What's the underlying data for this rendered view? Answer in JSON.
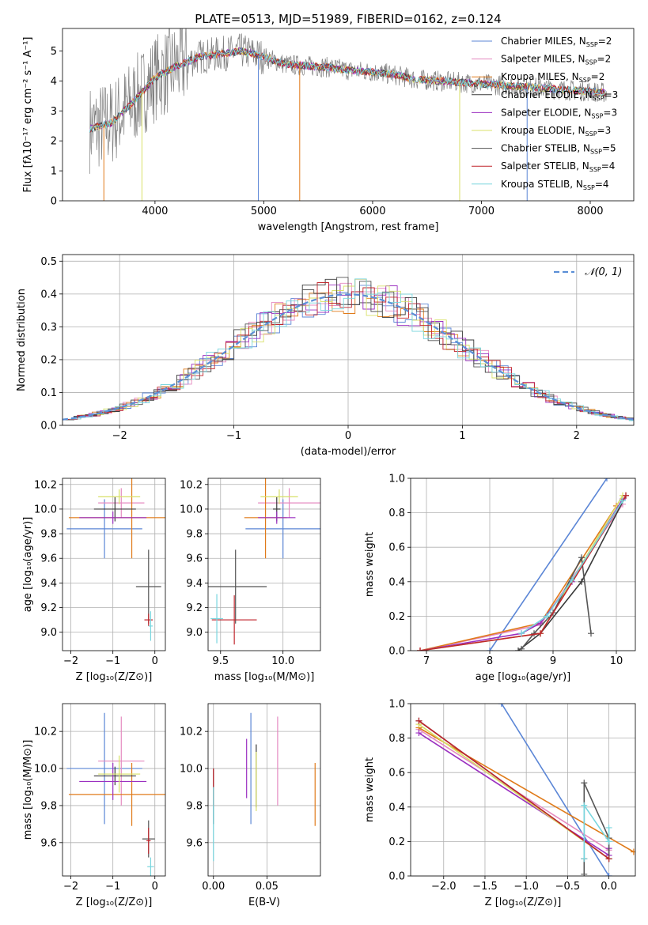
{
  "title": "PLATE=0513, MJD=51989, FIBERID=0162, z=0.124",
  "legend_models": [
    {
      "name": "Chabrier MILES, N",
      "sub": "SSP",
      "suffix": "=2",
      "color": "#5b86d6"
    },
    {
      "name": "Salpeter MILES, N",
      "sub": "SSP",
      "suffix": "=2",
      "color": "#e58ac0"
    },
    {
      "name": "Kroupa MILES, N",
      "sub": "SSP",
      "suffix": "=2",
      "color": "#e07b1a"
    },
    {
      "name": "Chabrier ELODIE, N",
      "sub": "SSP",
      "suffix": "=3",
      "color": "#3a3a3a"
    },
    {
      "name": "Salpeter ELODIE, N",
      "sub": "SSP",
      "suffix": "=3",
      "color": "#9b30c0"
    },
    {
      "name": "Kroupa ELODIE, N",
      "sub": "SSP",
      "suffix": "=3",
      "color": "#d8e068"
    },
    {
      "name": "Chabrier STELIB, N",
      "sub": "SSP",
      "suffix": "=5",
      "color": "#555555"
    },
    {
      "name": "Salpeter STELIB, N",
      "sub": "SSP",
      "suffix": "=4",
      "color": "#c0262d"
    },
    {
      "name": "Kroupa STELIB, N",
      "sub": "SSP",
      "suffix": "=4",
      "color": "#79d6de"
    }
  ],
  "chart_data": [
    {
      "id": "spectrum",
      "type": "line",
      "title": "PLATE=0513, MJD=51989, FIBERID=0162, z=0.124",
      "xlabel": "wavelength [Angstrom, rest frame]",
      "ylabel": "Flux [fλ10⁻¹⁷ erg cm⁻² s⁻¹ A⁻¹]",
      "xlim": [
        3150,
        8400
      ],
      "ylim": [
        0,
        5.75
      ],
      "xticks": [
        4000,
        5000,
        6000,
        7000,
        8000
      ],
      "yticks": [
        0,
        1,
        2,
        3,
        4,
        5
      ],
      "continuum": [
        [
          3400,
          2.4
        ],
        [
          3600,
          2.6
        ],
        [
          3800,
          3.3
        ],
        [
          4000,
          4.1
        ],
        [
          4200,
          4.5
        ],
        [
          4400,
          4.8
        ],
        [
          4600,
          4.9
        ],
        [
          4800,
          5.0
        ],
        [
          5000,
          4.8
        ],
        [
          5200,
          4.55
        ],
        [
          5400,
          4.5
        ],
        [
          5600,
          4.45
        ],
        [
          5800,
          4.35
        ],
        [
          6000,
          4.3
        ],
        [
          6200,
          4.2
        ],
        [
          6400,
          4.05
        ],
        [
          6600,
          4.0
        ],
        [
          6800,
          3.95
        ],
        [
          7000,
          3.9
        ],
        [
          7200,
          3.85
        ],
        [
          7400,
          3.8
        ],
        [
          7600,
          3.75
        ],
        [
          7800,
          3.7
        ],
        [
          8000,
          3.65
        ],
        [
          8150,
          3.6
        ]
      ],
      "dips": [
        [
          3530,
          0
        ],
        [
          3880,
          0
        ],
        [
          4950,
          0
        ],
        [
          5330,
          0
        ],
        [
          6800,
          0
        ],
        [
          7420,
          0
        ]
      ]
    },
    {
      "id": "residuals",
      "type": "bar",
      "xlabel": "(data-model)/error",
      "ylabel": "Normed distribution",
      "xlim": [
        -2.5,
        2.5
      ],
      "ylim": [
        0,
        0.52
      ],
      "xticks": [
        -2,
        -1,
        0,
        1,
        2
      ],
      "yticks": [
        0.0,
        0.1,
        0.2,
        0.3,
        0.4,
        0.5
      ],
      "legend": "𝒩(0, 1)",
      "bin_width": 0.1
    },
    {
      "id": "age-vs-Z",
      "type": "scatter",
      "xlabel": "Z [log₁₀(Z/Z⊙)]",
      "ylabel": "age  [log₁₀(age/yr)]",
      "xlim": [
        -2.2,
        0.25
      ],
      "ylim": [
        8.85,
        10.25
      ],
      "xticks": [
        -2,
        -1,
        0
      ],
      "yticks": [
        9.0,
        9.2,
        9.4,
        9.6,
        9.8,
        10.0,
        10.2
      ],
      "points": [
        {
          "model": 0,
          "x": -1.2,
          "xerr": 0.9,
          "y": 9.84,
          "yerr": 0.24
        },
        {
          "model": 1,
          "x": -0.8,
          "xerr": 0.55,
          "y": 10.05,
          "yerr": 0.12
        },
        {
          "model": 2,
          "x": -0.55,
          "xerr": 1.5,
          "y": 9.93,
          "yerr": 0.33
        },
        {
          "model": 3,
          "x": -0.95,
          "xerr": 0.5,
          "y": 10.0,
          "yerr": 0.1
        },
        {
          "model": 4,
          "x": -1.0,
          "xerr": 0.8,
          "y": 9.93,
          "yerr": 0.05
        },
        {
          "model": 5,
          "x": -0.85,
          "xerr": 0.5,
          "y": 10.1,
          "yerr": 0.06
        },
        {
          "model": 6,
          "x": -0.15,
          "xerr": 0.3,
          "y": 9.37,
          "yerr": 0.3
        },
        {
          "model": 7,
          "x": -0.15,
          "xerr": 0.1,
          "y": 9.1,
          "yerr": 0.05
        },
        {
          "model": 8,
          "x": -0.1,
          "xerr": 0.05,
          "y": 9.05,
          "yerr": 0.12
        }
      ]
    },
    {
      "id": "age-vs-mass",
      "type": "scatter",
      "xlabel": "mass [log₁₀(M/M⊙)]",
      "xlim": [
        9.4,
        10.3
      ],
      "ylim": [
        8.85,
        10.25
      ],
      "xticks": [
        9.5,
        10.0
      ],
      "yticks": [
        9.0,
        9.2,
        9.4,
        9.6,
        9.8,
        10.0,
        10.2
      ],
      "points": [
        {
          "model": 0,
          "x": 10.0,
          "xerr": 0.3,
          "y": 9.84,
          "yerr": 0.24
        },
        {
          "model": 1,
          "x": 10.05,
          "xerr": 0.25,
          "y": 10.05,
          "yerr": 0.12
        },
        {
          "model": 2,
          "x": 9.86,
          "xerr": 0.17,
          "y": 9.93,
          "yerr": 0.33
        },
        {
          "model": 3,
          "x": 9.95,
          "xerr": 0.03,
          "y": 10.0,
          "yerr": 0.1
        },
        {
          "model": 4,
          "x": 9.95,
          "xerr": 0.15,
          "y": 9.93,
          "yerr": 0.05
        },
        {
          "model": 5,
          "x": 9.97,
          "xerr": 0.15,
          "y": 10.1,
          "yerr": 0.06
        },
        {
          "model": 6,
          "x": 9.62,
          "xerr": 0.25,
          "y": 9.37,
          "yerr": 0.3
        },
        {
          "model": 7,
          "x": 9.61,
          "xerr": 0.18,
          "y": 9.1,
          "yerr": 0.2
        },
        {
          "model": 8,
          "x": 9.47,
          "xerr": 0.05,
          "y": 9.11,
          "yerr": 0.2
        }
      ]
    },
    {
      "id": "massweight-vs-age",
      "type": "line",
      "xlabel": "age  [log₁₀(age/yr)]",
      "ylabel": "mass weight",
      "xlim": [
        6.75,
        10.3
      ],
      "ylim": [
        0,
        1.0
      ],
      "xticks": [
        7,
        8,
        9,
        10
      ],
      "yticks": [
        0.0,
        0.2,
        0.4,
        0.6,
        0.8,
        1.0
      ],
      "series": [
        {
          "model": 0,
          "x": [
            8.0,
            9.85
          ],
          "y": [
            0.0,
            1.0
          ]
        },
        {
          "model": 1,
          "x": [
            6.9,
            8.8,
            10.1
          ],
          "y": [
            0.0,
            0.15,
            0.85
          ]
        },
        {
          "model": 2,
          "x": [
            6.9,
            8.8,
            10.0
          ],
          "y": [
            0.0,
            0.16,
            0.84
          ]
        },
        {
          "model": 3,
          "x": [
            8.45,
            8.8,
            9.45,
            10.15
          ],
          "y": [
            0.0,
            0.1,
            0.4,
            0.9
          ]
        },
        {
          "model": 4,
          "x": [
            6.9,
            8.5,
            8.8,
            9.3,
            10.1
          ],
          "y": [
            0.0,
            0.1,
            0.16,
            0.4,
            0.88
          ]
        },
        {
          "model": 5,
          "x": [
            6.9,
            8.8,
            10.1
          ],
          "y": [
            0.0,
            0.1,
            0.9
          ]
        },
        {
          "model": 6,
          "x": [
            8.5,
            8.7,
            9.0,
            9.45,
            9.6
          ],
          "y": [
            0.01,
            0.1,
            0.22,
            0.54,
            0.1
          ]
        },
        {
          "model": 7,
          "x": [
            6.9,
            8.8,
            10.15
          ],
          "y": [
            0.0,
            0.1,
            0.9
          ]
        },
        {
          "model": 8,
          "x": [
            8.5,
            8.9,
            9.3,
            10.1
          ],
          "y": [
            0.1,
            0.2,
            0.41,
            0.87
          ]
        }
      ]
    },
    {
      "id": "mass-vs-Z",
      "type": "scatter",
      "xlabel": "Z [log₁₀(Z/Z⊙)]",
      "ylabel": "mass [log₁₀(M/M⊙)]",
      "xlim": [
        -2.2,
        0.25
      ],
      "ylim": [
        9.42,
        10.35
      ],
      "xticks": [
        -2,
        -1,
        0
      ],
      "yticks": [
        9.6,
        9.8,
        10.0,
        10.2
      ],
      "points": [
        {
          "model": 0,
          "x": -1.2,
          "xerr": 0.9,
          "y": 10.0,
          "yerr": 0.3
        },
        {
          "model": 1,
          "x": -0.8,
          "xerr": 0.55,
          "y": 10.04,
          "yerr": 0.24
        },
        {
          "model": 2,
          "x": -0.55,
          "xerr": 1.5,
          "y": 9.86,
          "yerr": 0.17
        },
        {
          "model": 3,
          "x": -0.95,
          "xerr": 0.5,
          "y": 9.96,
          "yerr": 0.05
        },
        {
          "model": 4,
          "x": -1.0,
          "xerr": 0.8,
          "y": 9.93,
          "yerr": 0.1
        },
        {
          "model": 5,
          "x": -0.85,
          "xerr": 0.5,
          "y": 9.97,
          "yerr": 0.1
        },
        {
          "model": 6,
          "x": -0.15,
          "xerr": 0.15,
          "y": 9.62,
          "yerr": 0.1
        },
        {
          "model": 7,
          "x": -0.15,
          "xerr": 0.05,
          "y": 9.61,
          "yerr": 0.07
        },
        {
          "model": 8,
          "x": -0.1,
          "xerr": 0.08,
          "y": 9.47,
          "yerr": 0.05
        }
      ]
    },
    {
      "id": "mass-vs-EBV",
      "type": "scatter",
      "xlabel": "E(B-V)",
      "xlim": [
        -0.005,
        0.1
      ],
      "ylim": [
        9.42,
        10.35
      ],
      "xticks": [
        0.0,
        0.05
      ],
      "xticklabels": [
        "0.00",
        "0.05"
      ],
      "yticks": [
        9.6,
        9.8,
        10.0,
        10.2
      ],
      "points": [
        {
          "model": 0,
          "x": 0.035,
          "y": 10.0,
          "yerr": 0.3
        },
        {
          "model": 1,
          "x": 0.06,
          "y": 10.04,
          "yerr": 0.24
        },
        {
          "model": 2,
          "x": 0.095,
          "y": 9.86,
          "yerr": 0.17
        },
        {
          "model": 3,
          "x": 0.04,
          "y": 9.96,
          "yerr": 0.17
        },
        {
          "model": 4,
          "x": 0.031,
          "y": 10.0,
          "yerr": 0.16
        },
        {
          "model": 5,
          "x": 0.04,
          "y": 9.93,
          "yerr": 0.16
        },
        {
          "model": 6,
          "x": 0.0,
          "y": 9.85,
          "yerr": 0.15
        },
        {
          "model": 7,
          "x": 0.0,
          "y": 9.9,
          "yerr": 0.1
        },
        {
          "model": 8,
          "x": 0.0,
          "y": 9.7,
          "yerr": 0.2
        }
      ]
    },
    {
      "id": "massweight-vs-Z",
      "type": "line",
      "xlabel": "Z [log₁₀(Z/Z⊙)]",
      "ylabel": "mass weight",
      "xlim": [
        -2.4,
        0.32
      ],
      "ylim": [
        0,
        1.0
      ],
      "xticks": [
        -2.0,
        -1.5,
        -1.0,
        -0.5,
        0.0
      ],
      "yticks": [
        0.0,
        0.2,
        0.4,
        0.6,
        0.8,
        1.0
      ],
      "series": [
        {
          "model": 0,
          "x": [
            -1.3,
            0.0
          ],
          "y": [
            1.0,
            0.0
          ]
        },
        {
          "model": 1,
          "x": [
            -2.3,
            0.0
          ],
          "y": [
            0.85,
            0.15
          ]
        },
        {
          "model": 2,
          "x": [
            -2.3,
            0.3
          ],
          "y": [
            0.86,
            0.14
          ]
        },
        {
          "model": 3,
          "x": [
            -2.3,
            0.0
          ],
          "y": [
            0.9,
            0.1
          ]
        },
        {
          "model": 4,
          "x": [
            -2.3,
            0.0,
            0.0
          ],
          "y": [
            0.83,
            0.12,
            0.16
          ]
        },
        {
          "model": 5,
          "x": [
            -2.3,
            0.0
          ],
          "y": [
            0.88,
            0.1
          ]
        },
        {
          "model": 6,
          "x": [
            -0.3,
            -0.3,
            -0.3,
            0.0,
            0.0
          ],
          "y": [
            0.01,
            0.1,
            0.54,
            0.22,
            0.1
          ]
        },
        {
          "model": 7,
          "x": [
            -2.3,
            0.0
          ],
          "y": [
            0.9,
            0.1
          ]
        },
        {
          "model": 8,
          "x": [
            -0.3,
            -0.3,
            0.0,
            0.0
          ],
          "y": [
            0.1,
            0.41,
            0.2,
            0.28
          ]
        }
      ]
    }
  ]
}
